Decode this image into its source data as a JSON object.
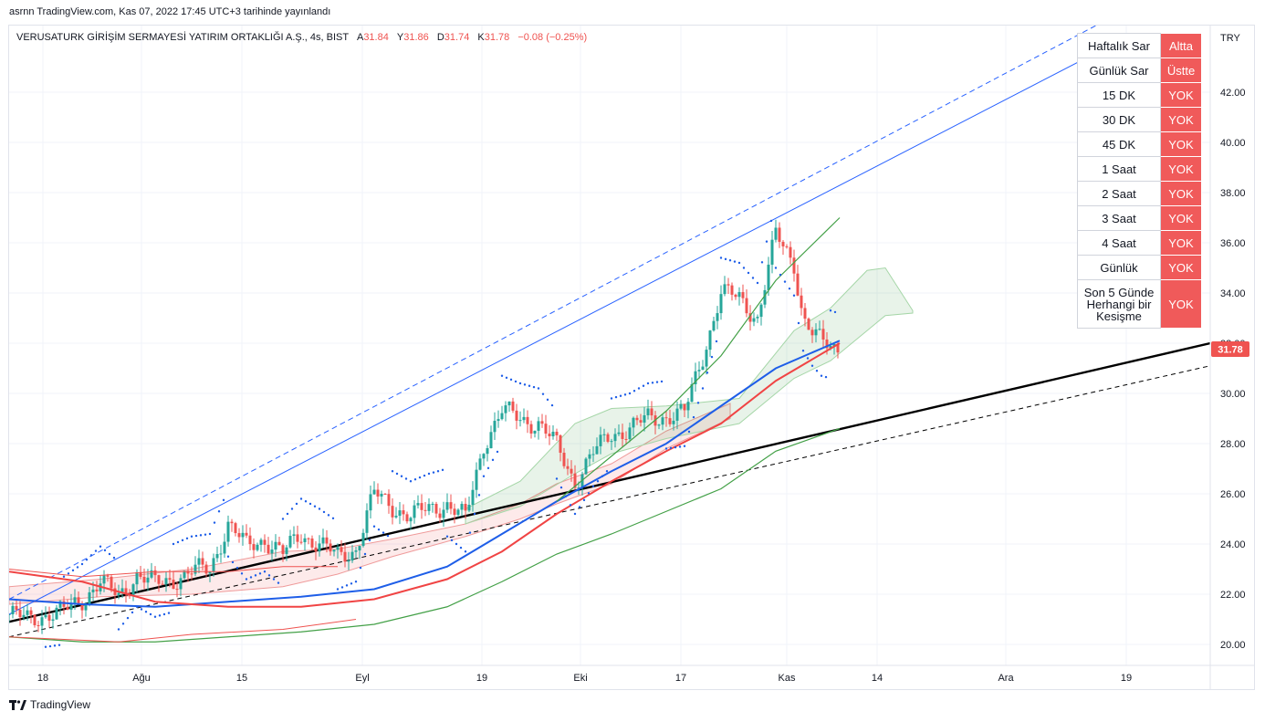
{
  "header": {
    "published_by": "asrnn TradingView.com, Kas 07, 2022 17:45 UTC+3 tarihinde yayınlandı"
  },
  "legend": {
    "symbol": "VERUSATURK GİRİŞİM SERMAYESİ YATIRIM ORTAKLIĞI A.Ş., 4s, BIST",
    "open_label": "A",
    "open": "31.84",
    "high_label": "Y",
    "high": "31.86",
    "low_label": "D",
    "low": "31.74",
    "close_label": "K",
    "close": "31.78",
    "change": "−0.08 (−0.25%)"
  },
  "currency_label": "TRY",
  "last_price_tag": "31.78",
  "colors": {
    "up": "#26a69a",
    "down": "#ef5350",
    "table_status": "#f05a5a",
    "ma_blue": "#1e5ee8",
    "ma_red": "#f04444",
    "ma_green": "#43a047",
    "channel": "#2962ff",
    "trend": "#000000"
  },
  "signal_table": {
    "rows": [
      {
        "label": "Haftalık Sar",
        "status": "Altta"
      },
      {
        "label": "Günlük Sar",
        "status": "Üstte"
      },
      {
        "label": "15 DK",
        "status": "YOK"
      },
      {
        "label": "30 DK",
        "status": "YOK"
      },
      {
        "label": "45 DK",
        "status": "YOK"
      },
      {
        "label": "1 Saat",
        "status": "YOK"
      },
      {
        "label": "2 Saat",
        "status": "YOK"
      },
      {
        "label": "3 Saat",
        "status": "YOK"
      },
      {
        "label": "4 Saat",
        "status": "YOK"
      },
      {
        "label": "Günlük",
        "status": "YOK"
      },
      {
        "label": "Son 5 Günde Herhangi bir Kesişme",
        "status": "YOK"
      }
    ]
  },
  "footer": {
    "brand": "TradingView"
  },
  "chart_data": {
    "type": "candlestick",
    "ylim": [
      19.0,
      40.0
    ],
    "y_ticks": [
      "20.00",
      "22.00",
      "24.00",
      "26.00",
      "28.00",
      "30.00",
      "32.00",
      "34.00",
      "36.00",
      "38.00",
      "40.00",
      "42.00"
    ],
    "x_ticks": [
      "18",
      "Ağu",
      "15",
      "Eyl",
      "19",
      "Eki",
      "17",
      "Kas",
      "14",
      "Ara",
      "19"
    ],
    "grid": true,
    "series": [
      {
        "name": "",
        "kind": "price",
        "color": "#26a69a",
        "values": [
          [
            0,
            21.2
          ],
          [
            20,
            21.0
          ],
          [
            40,
            21.2
          ],
          [
            60,
            21.3
          ],
          [
            80,
            21.8
          ],
          [
            100,
            22.5
          ],
          [
            120,
            21.9
          ],
          [
            140,
            22.8
          ],
          [
            160,
            22.4
          ],
          [
            180,
            22.6
          ],
          [
            200,
            22.9
          ],
          [
            220,
            23.0
          ],
          [
            240,
            24.8
          ],
          [
            260,
            23.9
          ],
          [
            280,
            24.2
          ],
          [
            300,
            23.6
          ],
          [
            320,
            24.4
          ],
          [
            340,
            24.0
          ],
          [
            360,
            23.5
          ],
          [
            380,
            23.8
          ],
          [
            400,
            26.0
          ],
          [
            420,
            25.5
          ],
          [
            440,
            25.1
          ],
          [
            460,
            25.4
          ],
          [
            480,
            25.6
          ],
          [
            500,
            25.0
          ],
          [
            520,
            28.0
          ],
          [
            540,
            29.3
          ],
          [
            560,
            29.0
          ],
          [
            580,
            28.8
          ],
          [
            600,
            27.9
          ],
          [
            620,
            26.5
          ],
          [
            640,
            27.6
          ],
          [
            660,
            28.4
          ],
          [
            680,
            28.6
          ],
          [
            700,
            29.0
          ],
          [
            720,
            29.1
          ],
          [
            740,
            29.2
          ],
          [
            760,
            31.5
          ],
          [
            780,
            34.0
          ],
          [
            800,
            33.8
          ],
          [
            820,
            33.0
          ],
          [
            840,
            36.3
          ],
          [
            860,
            35.2
          ],
          [
            870,
            33.0
          ],
          [
            880,
            32.4
          ],
          [
            890,
            32.0
          ],
          [
            900,
            31.9
          ],
          [
            910,
            31.78
          ]
        ]
      },
      {
        "name": "",
        "kind": "ma",
        "color": "#1e5ee8",
        "values": [
          [
            0,
            21.8
          ],
          [
            80,
            21.6
          ],
          [
            160,
            21.5
          ],
          [
            240,
            21.7
          ],
          [
            320,
            21.9
          ],
          [
            400,
            22.2
          ],
          [
            480,
            23.1
          ],
          [
            540,
            24.4
          ],
          [
            600,
            25.7
          ],
          [
            660,
            26.9
          ],
          [
            720,
            28.0
          ],
          [
            780,
            29.5
          ],
          [
            840,
            31.0
          ],
          [
            910,
            32.1
          ]
        ]
      },
      {
        "name": "",
        "kind": "ma",
        "color": "#f04444",
        "values": [
          [
            0,
            22.9
          ],
          [
            80,
            22.5
          ],
          [
            160,
            21.7
          ],
          [
            240,
            21.5
          ],
          [
            320,
            21.5
          ],
          [
            400,
            21.8
          ],
          [
            480,
            22.6
          ],
          [
            540,
            23.7
          ],
          [
            600,
            25.2
          ],
          [
            660,
            26.5
          ],
          [
            720,
            27.7
          ],
          [
            780,
            28.8
          ],
          [
            840,
            30.5
          ],
          [
            910,
            32.0
          ]
        ]
      },
      {
        "name": "",
        "kind": "ma",
        "color": "#43a047",
        "values": [
          [
            0,
            20.3
          ],
          [
            80,
            20.1
          ],
          [
            160,
            20.1
          ],
          [
            240,
            20.3
          ],
          [
            320,
            20.5
          ],
          [
            400,
            20.8
          ],
          [
            480,
            21.5
          ],
          [
            540,
            22.5
          ],
          [
            600,
            23.6
          ],
          [
            660,
            24.4
          ],
          [
            720,
            25.3
          ],
          [
            780,
            26.2
          ],
          [
            840,
            27.7
          ],
          [
            910,
            28.6
          ]
        ]
      },
      {
        "name": "",
        "kind": "ma",
        "color": "#43a047",
        "values": [
          [
            600,
            25.7
          ],
          [
            660,
            27.5
          ],
          [
            720,
            29.3
          ],
          [
            780,
            31.5
          ],
          [
            840,
            34.5
          ],
          [
            910,
            37.0
          ]
        ]
      }
    ]
  }
}
